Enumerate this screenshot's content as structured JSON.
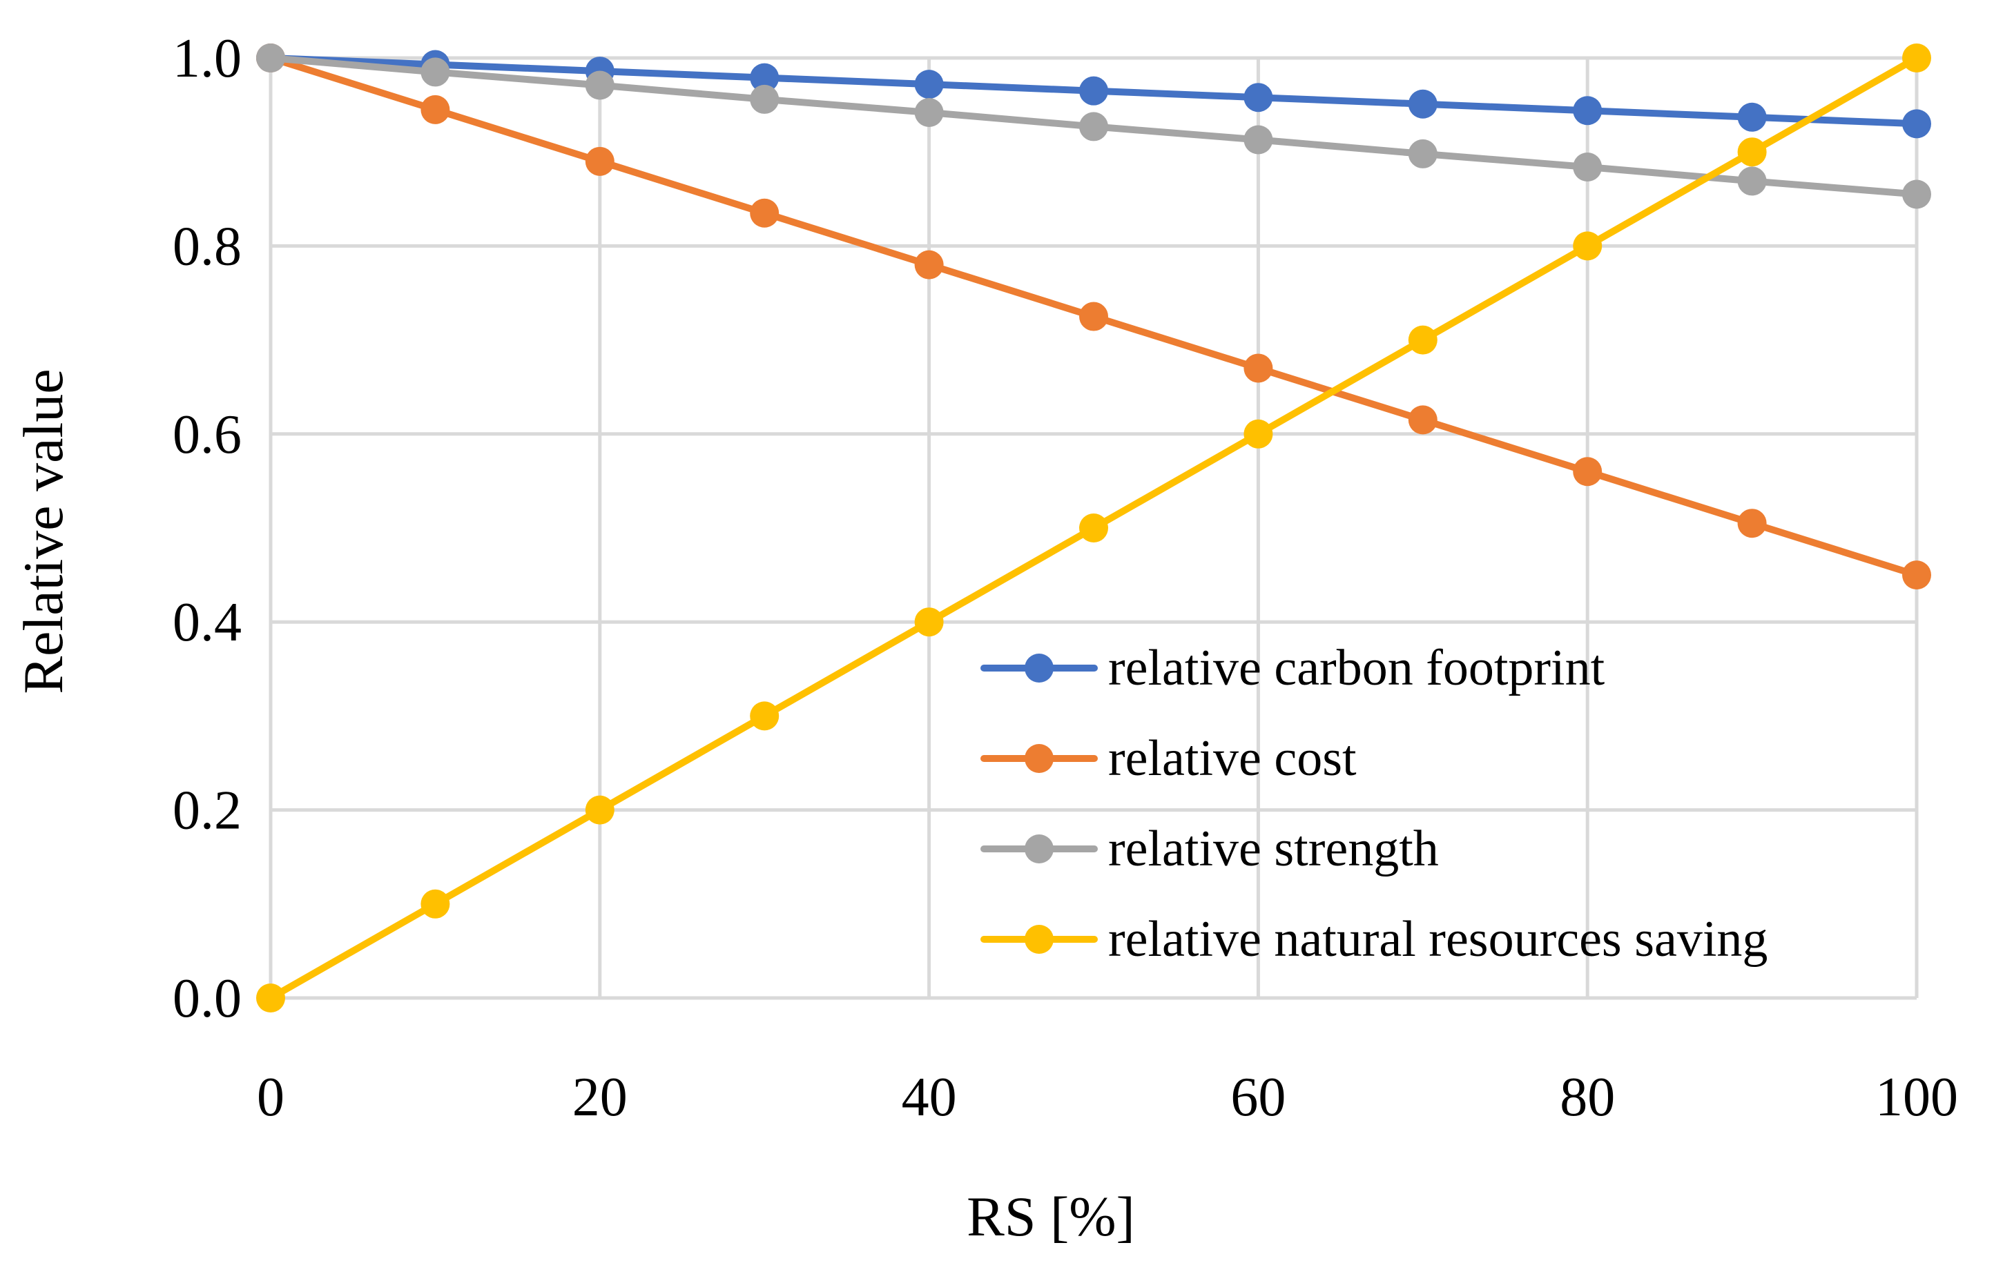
{
  "chart_data": {
    "type": "line",
    "title": "",
    "xlabel": "RS [%]",
    "ylabel": "Relative value",
    "x": [
      0,
      10,
      20,
      30,
      40,
      50,
      60,
      70,
      80,
      90,
      100
    ],
    "xlim": [
      0,
      100
    ],
    "ylim": [
      0,
      1
    ],
    "xticks": [
      0,
      20,
      40,
      60,
      80,
      100
    ],
    "yticks": [
      0,
      0.2,
      0.4,
      0.6,
      0.8,
      1.0
    ],
    "xtick_labels": [
      "0",
      "20",
      "40",
      "60",
      "80",
      "100"
    ],
    "ytick_labels": [
      "0.0",
      "0.2",
      "0.4",
      "0.6",
      "0.8",
      "1.0"
    ],
    "grid": true,
    "legend_position": "bottom-right",
    "series": [
      {
        "name": "relative carbon footprint",
        "color": "#4472c4",
        "values": [
          1.0,
          0.993,
          0.986,
          0.979,
          0.972,
          0.965,
          0.958,
          0.951,
          0.944,
          0.937,
          0.93
        ]
      },
      {
        "name": "relative cost",
        "color": "#ed7d31",
        "values": [
          1.0,
          0.945,
          0.89,
          0.835,
          0.78,
          0.725,
          0.67,
          0.615,
          0.56,
          0.505,
          0.45
        ]
      },
      {
        "name": "relative strength",
        "color": "#a5a5a5",
        "values": [
          1.0,
          0.985,
          0.971,
          0.956,
          0.942,
          0.927,
          0.913,
          0.898,
          0.884,
          0.869,
          0.855
        ]
      },
      {
        "name": "relative natural resources saving",
        "color": "#ffc000",
        "values": [
          0.0,
          0.1,
          0.2,
          0.3,
          0.4,
          0.5,
          0.6,
          0.7,
          0.8,
          0.9,
          1.0
        ]
      }
    ]
  }
}
